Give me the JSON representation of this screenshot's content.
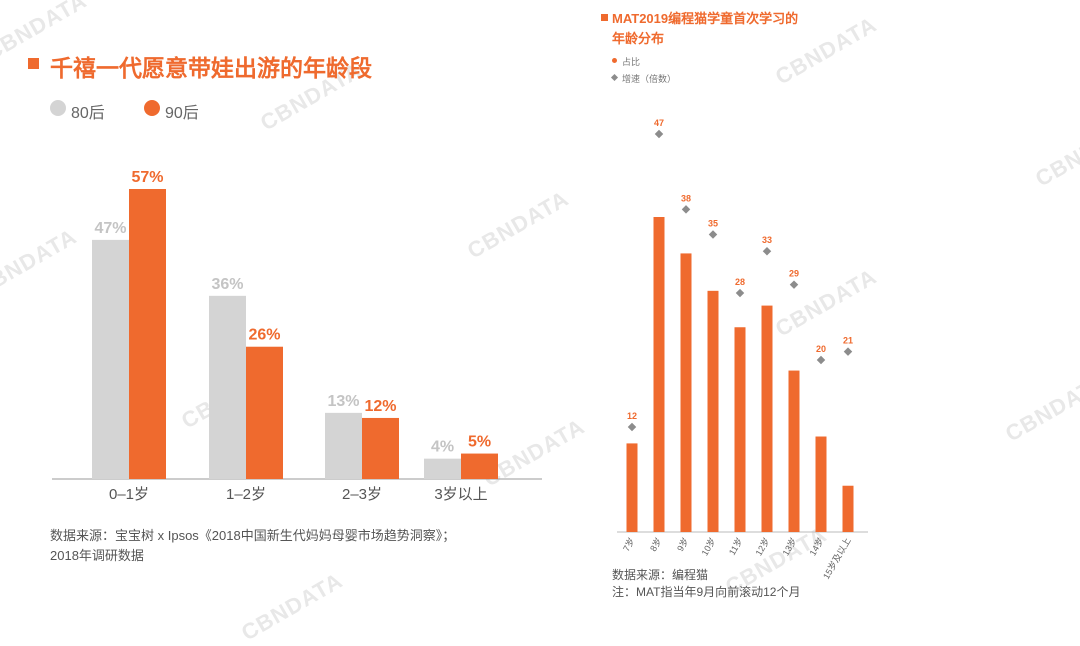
{
  "watermark": "CBNDATA",
  "chart_data": [
    {
      "type": "bar",
      "title": "千禧一代愿意带娃出游的年龄段",
      "categories": [
        "0–1岁",
        "1–2岁",
        "2–3岁",
        "3岁以上"
      ],
      "series": [
        {
          "name": "80后",
          "values": [
            47,
            36,
            13,
            4
          ],
          "color": "#d4d4d4",
          "labels": [
            "47%",
            "36%",
            "13%",
            "4%"
          ]
        },
        {
          "name": "90后",
          "values": [
            57,
            26,
            12,
            5
          ],
          "color": "#ef6a2e",
          "labels": [
            "57%",
            "26%",
            "12%",
            "5%"
          ]
        }
      ],
      "ylim": [
        0,
        60
      ],
      "legend": "top-left",
      "grid": false,
      "notes": [
        "数据来源：宝宝树 x Ipsos《2018中国新生代妈妈母婴市场趋势洞察》；",
        "2018年调研数据"
      ]
    },
    {
      "type": "bar",
      "title_lines": [
        "MAT2019编程猫学童首次学习的",
        "年龄分布"
      ],
      "categories": [
        "7岁",
        "8岁",
        "9岁",
        "10岁",
        "11岁",
        "12岁",
        "13岁",
        "14岁",
        "15岁及以上"
      ],
      "series": [
        {
          "name": "占比",
          "values": [
            0.9,
            3.2,
            2.83,
            2.45,
            2.08,
            2.3,
            1.64,
            0.97,
            0.47
          ],
          "color": "#ef6a2e"
        },
        {
          "name": "增速（倍数）",
          "values": [
            12,
            47,
            38,
            35,
            28,
            33,
            29,
            20,
            21
          ],
          "labels": [
            "12",
            "47",
            "38",
            "35",
            "28",
            "33",
            "29",
            "20",
            "21"
          ],
          "color": "#8c8c8c"
        }
      ],
      "legend": "top-left",
      "grid": false,
      "notes": [
        "数据来源：编程猫",
        "注：MAT指当年9月向前滚动12个月"
      ]
    }
  ]
}
